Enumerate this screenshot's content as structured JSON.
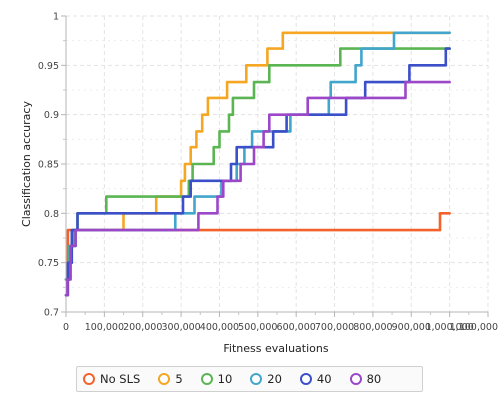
{
  "chart_data": {
    "type": "line",
    "title": "",
    "xlabel": "Fitness evaluations",
    "ylabel": "Classification accuracy",
    "xlim": [
      0,
      1100000
    ],
    "ylim": [
      0.7,
      1.0
    ],
    "x_ticks": [
      0,
      100000,
      200000,
      300000,
      400000,
      500000,
      600000,
      700000,
      800000,
      900000,
      1000000,
      1100000
    ],
    "x_tick_labels": [
      "0",
      "100,000",
      "200,000",
      "300,000",
      "400,000",
      "500,000",
      "600,000",
      "700,000",
      "800,000",
      "900,000",
      "1,000,000",
      "1,100,000"
    ],
    "y_ticks": [
      0.7,
      0.75,
      0.8,
      0.85,
      0.9,
      0.95,
      1.0
    ],
    "y_tick_labels": [
      "0.7",
      "0.75",
      "0.8",
      "0.85",
      "0.9",
      "0.95",
      "1"
    ],
    "grid": true,
    "legend_position": "bottom",
    "series": [
      {
        "name": "No SLS",
        "color": "#f4622c",
        "points": [
          [
            0,
            0.733
          ],
          [
            5000,
            0.733
          ],
          [
            5000,
            0.783
          ],
          [
            975000,
            0.783
          ],
          [
            975000,
            0.8
          ],
          [
            1000000,
            0.8
          ]
        ]
      },
      {
        "name": "5",
        "color": "#f5a623",
        "points": [
          [
            0,
            0.733
          ],
          [
            6000,
            0.733
          ],
          [
            6000,
            0.75
          ],
          [
            12000,
            0.75
          ],
          [
            12000,
            0.767
          ],
          [
            20000,
            0.767
          ],
          [
            20000,
            0.783
          ],
          [
            150000,
            0.783
          ],
          [
            150000,
            0.8
          ],
          [
            235000,
            0.8
          ],
          [
            235000,
            0.817
          ],
          [
            300000,
            0.817
          ],
          [
            300000,
            0.833
          ],
          [
            310000,
            0.833
          ],
          [
            310000,
            0.85
          ],
          [
            325000,
            0.85
          ],
          [
            325000,
            0.867
          ],
          [
            340000,
            0.867
          ],
          [
            340000,
            0.883
          ],
          [
            355000,
            0.883
          ],
          [
            355000,
            0.9
          ],
          [
            370000,
            0.9
          ],
          [
            370000,
            0.917
          ],
          [
            420000,
            0.917
          ],
          [
            420000,
            0.933
          ],
          [
            470000,
            0.933
          ],
          [
            470000,
            0.95
          ],
          [
            525000,
            0.95
          ],
          [
            525000,
            0.967
          ],
          [
            565000,
            0.967
          ],
          [
            565000,
            0.983
          ],
          [
            1000000,
            0.983
          ]
        ]
      },
      {
        "name": "10",
        "color": "#5ab552",
        "points": [
          [
            0,
            0.733
          ],
          [
            8000,
            0.733
          ],
          [
            8000,
            0.767
          ],
          [
            20000,
            0.767
          ],
          [
            20000,
            0.783
          ],
          [
            30000,
            0.783
          ],
          [
            30000,
            0.8
          ],
          [
            105000,
            0.8
          ],
          [
            105000,
            0.817
          ],
          [
            320000,
            0.817
          ],
          [
            320000,
            0.833
          ],
          [
            330000,
            0.833
          ],
          [
            330000,
            0.85
          ],
          [
            385000,
            0.85
          ],
          [
            385000,
            0.867
          ],
          [
            400000,
            0.867
          ],
          [
            400000,
            0.883
          ],
          [
            425000,
            0.883
          ],
          [
            425000,
            0.9
          ],
          [
            435000,
            0.9
          ],
          [
            435000,
            0.917
          ],
          [
            490000,
            0.917
          ],
          [
            490000,
            0.933
          ],
          [
            530000,
            0.933
          ],
          [
            530000,
            0.95
          ],
          [
            715000,
            0.95
          ],
          [
            715000,
            0.967
          ],
          [
            1000000,
            0.967
          ]
        ]
      },
      {
        "name": "20",
        "color": "#42a6cc",
        "points": [
          [
            0,
            0.733
          ],
          [
            10000,
            0.733
          ],
          [
            10000,
            0.767
          ],
          [
            25000,
            0.767
          ],
          [
            25000,
            0.783
          ],
          [
            285000,
            0.783
          ],
          [
            285000,
            0.8
          ],
          [
            335000,
            0.8
          ],
          [
            335000,
            0.817
          ],
          [
            405000,
            0.817
          ],
          [
            405000,
            0.833
          ],
          [
            445000,
            0.833
          ],
          [
            445000,
            0.85
          ],
          [
            465000,
            0.85
          ],
          [
            465000,
            0.867
          ],
          [
            485000,
            0.867
          ],
          [
            485000,
            0.883
          ],
          [
            585000,
            0.883
          ],
          [
            585000,
            0.9
          ],
          [
            685000,
            0.9
          ],
          [
            685000,
            0.917
          ],
          [
            690000,
            0.917
          ],
          [
            690000,
            0.933
          ],
          [
            755000,
            0.933
          ],
          [
            755000,
            0.95
          ],
          [
            770000,
            0.95
          ],
          [
            770000,
            0.967
          ],
          [
            855000,
            0.967
          ],
          [
            855000,
            0.983
          ],
          [
            1000000,
            0.983
          ]
        ]
      },
      {
        "name": "40",
        "color": "#3a4fc8",
        "points": [
          [
            0,
            0.717
          ],
          [
            5000,
            0.717
          ],
          [
            5000,
            0.75
          ],
          [
            15000,
            0.75
          ],
          [
            15000,
            0.783
          ],
          [
            30000,
            0.783
          ],
          [
            30000,
            0.8
          ],
          [
            305000,
            0.8
          ],
          [
            305000,
            0.817
          ],
          [
            325000,
            0.817
          ],
          [
            325000,
            0.833
          ],
          [
            430000,
            0.833
          ],
          [
            430000,
            0.85
          ],
          [
            445000,
            0.85
          ],
          [
            445000,
            0.867
          ],
          [
            540000,
            0.867
          ],
          [
            540000,
            0.883
          ],
          [
            575000,
            0.883
          ],
          [
            575000,
            0.9
          ],
          [
            730000,
            0.9
          ],
          [
            730000,
            0.917
          ],
          [
            780000,
            0.917
          ],
          [
            780000,
            0.933
          ],
          [
            895000,
            0.933
          ],
          [
            895000,
            0.95
          ],
          [
            990000,
            0.95
          ],
          [
            990000,
            0.967
          ],
          [
            1000000,
            0.967
          ]
        ]
      },
      {
        "name": "80",
        "color": "#9b47c8",
        "points": [
          [
            0,
            0.717
          ],
          [
            4000,
            0.717
          ],
          [
            4000,
            0.733
          ],
          [
            12000,
            0.733
          ],
          [
            12000,
            0.767
          ],
          [
            25000,
            0.767
          ],
          [
            25000,
            0.783
          ],
          [
            345000,
            0.783
          ],
          [
            345000,
            0.8
          ],
          [
            395000,
            0.8
          ],
          [
            395000,
            0.817
          ],
          [
            410000,
            0.817
          ],
          [
            410000,
            0.833
          ],
          [
            455000,
            0.833
          ],
          [
            455000,
            0.85
          ],
          [
            490000,
            0.85
          ],
          [
            490000,
            0.867
          ],
          [
            515000,
            0.867
          ],
          [
            515000,
            0.883
          ],
          [
            530000,
            0.883
          ],
          [
            530000,
            0.9
          ],
          [
            630000,
            0.9
          ],
          [
            630000,
            0.917
          ],
          [
            885000,
            0.917
          ],
          [
            885000,
            0.933
          ],
          [
            1000000,
            0.933
          ]
        ]
      }
    ]
  }
}
